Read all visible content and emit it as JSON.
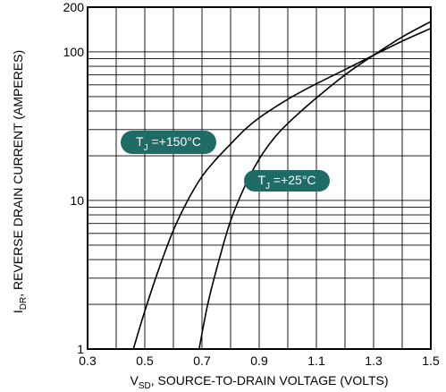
{
  "chart_data": {
    "type": "line",
    "y_scale": "log",
    "grid": true,
    "xlim": [
      0.3,
      1.5
    ],
    "ylim": [
      1,
      200
    ],
    "x_ticks": [
      "0.3",
      "0.5",
      "0.7",
      "0.9",
      "1.1",
      "1.3",
      "1.5"
    ],
    "y_ticks": [
      "1",
      "10",
      "100",
      "200"
    ],
    "xlabel": {
      "main": "V",
      "sub": "SD",
      "rest": ", SOURCE-TO-DRAIN VOLTAGE (VOLTS)"
    },
    "ylabel": {
      "main": "I",
      "sub": "DR",
      "rest": ", REVERSE DRAIN CURRENT (AMPERES)"
    },
    "label_color": "#1f6b66",
    "series": [
      {
        "name": {
          "main": "T",
          "sub": "J",
          "rest": " =+150°C"
        },
        "points": [
          [
            0.46,
            1.0
          ],
          [
            0.5,
            1.8
          ],
          [
            0.55,
            3.5
          ],
          [
            0.6,
            6.3
          ],
          [
            0.65,
            10
          ],
          [
            0.7,
            14.5
          ],
          [
            0.75,
            19
          ],
          [
            0.8,
            24
          ],
          [
            0.85,
            30
          ],
          [
            0.9,
            36
          ],
          [
            1.0,
            48
          ],
          [
            1.1,
            61
          ],
          [
            1.2,
            76
          ],
          [
            1.3,
            95
          ],
          [
            1.4,
            118
          ],
          [
            1.5,
            144
          ]
        ]
      },
      {
        "name": {
          "main": "T",
          "sub": "J",
          "rest": " =+25°C"
        },
        "points": [
          [
            0.69,
            1.0
          ],
          [
            0.72,
            2.0
          ],
          [
            0.76,
            4.0
          ],
          [
            0.8,
            7.3
          ],
          [
            0.85,
            12.5
          ],
          [
            0.9,
            19
          ],
          [
            0.95,
            26
          ],
          [
            1.0,
            33
          ],
          [
            1.1,
            49
          ],
          [
            1.2,
            70
          ],
          [
            1.3,
            95
          ],
          [
            1.4,
            126
          ],
          [
            1.5,
            160
          ]
        ]
      }
    ]
  }
}
